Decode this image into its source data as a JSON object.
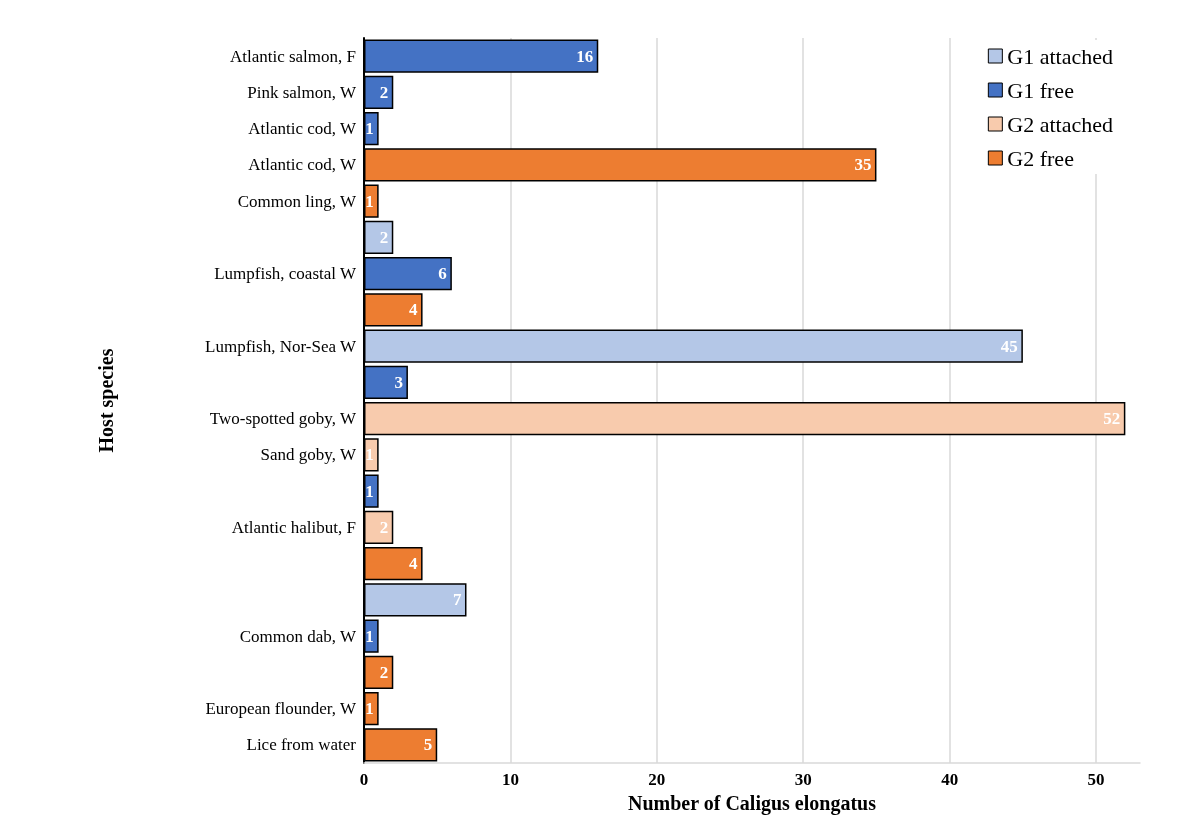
{
  "chart_data": {
    "type": "bar",
    "orientation": "horizontal",
    "stacked": true,
    "xlabel": "Number of Caligus elongatus",
    "ylabel": "Host species",
    "categories": [
      "Atlantic salmon, F",
      "Pink salmon, W",
      "Atlantic cod, W",
      "Atlantic cod, W",
      "Common ling, W",
      null,
      "Lumpfish, coastal W",
      null,
      "Lumpfish, Nor-Sea W",
      null,
      "Two-spotted goby, W",
      "Sand goby, W",
      null,
      "Atlantic halibut, F",
      null,
      null,
      "Common dab, W",
      null,
      "European flounder, W",
      "Lice from water"
    ],
    "series": [
      {
        "name": "G1 attached",
        "color": "#b4c7e7",
        "values": [
          null,
          null,
          null,
          null,
          null,
          2,
          null,
          null,
          45,
          null,
          null,
          null,
          null,
          null,
          null,
          7,
          null,
          null,
          null,
          null
        ]
      },
      {
        "name": "G1 free",
        "color": "#4472c4",
        "values": [
          16,
          2,
          1,
          null,
          null,
          null,
          6,
          null,
          null,
          3,
          null,
          null,
          1,
          null,
          null,
          null,
          1,
          null,
          null,
          null
        ]
      },
      {
        "name": "G2 attached",
        "color": "#f8cbad",
        "values": [
          null,
          null,
          null,
          null,
          null,
          null,
          null,
          null,
          null,
          null,
          52,
          1,
          null,
          2,
          null,
          null,
          null,
          null,
          null,
          null
        ]
      },
      {
        "name": "G2 free",
        "color": "#ed7d31",
        "values": [
          null,
          null,
          null,
          35,
          1,
          null,
          null,
          4,
          null,
          null,
          null,
          null,
          null,
          null,
          4,
          null,
          null,
          2,
          1,
          5
        ]
      }
    ],
    "xlim": [
      0,
      53
    ],
    "xticks": [
      0,
      10,
      20,
      30,
      40,
      50
    ],
    "grid": "x",
    "legend": "top right",
    "data_labels": true
  }
}
